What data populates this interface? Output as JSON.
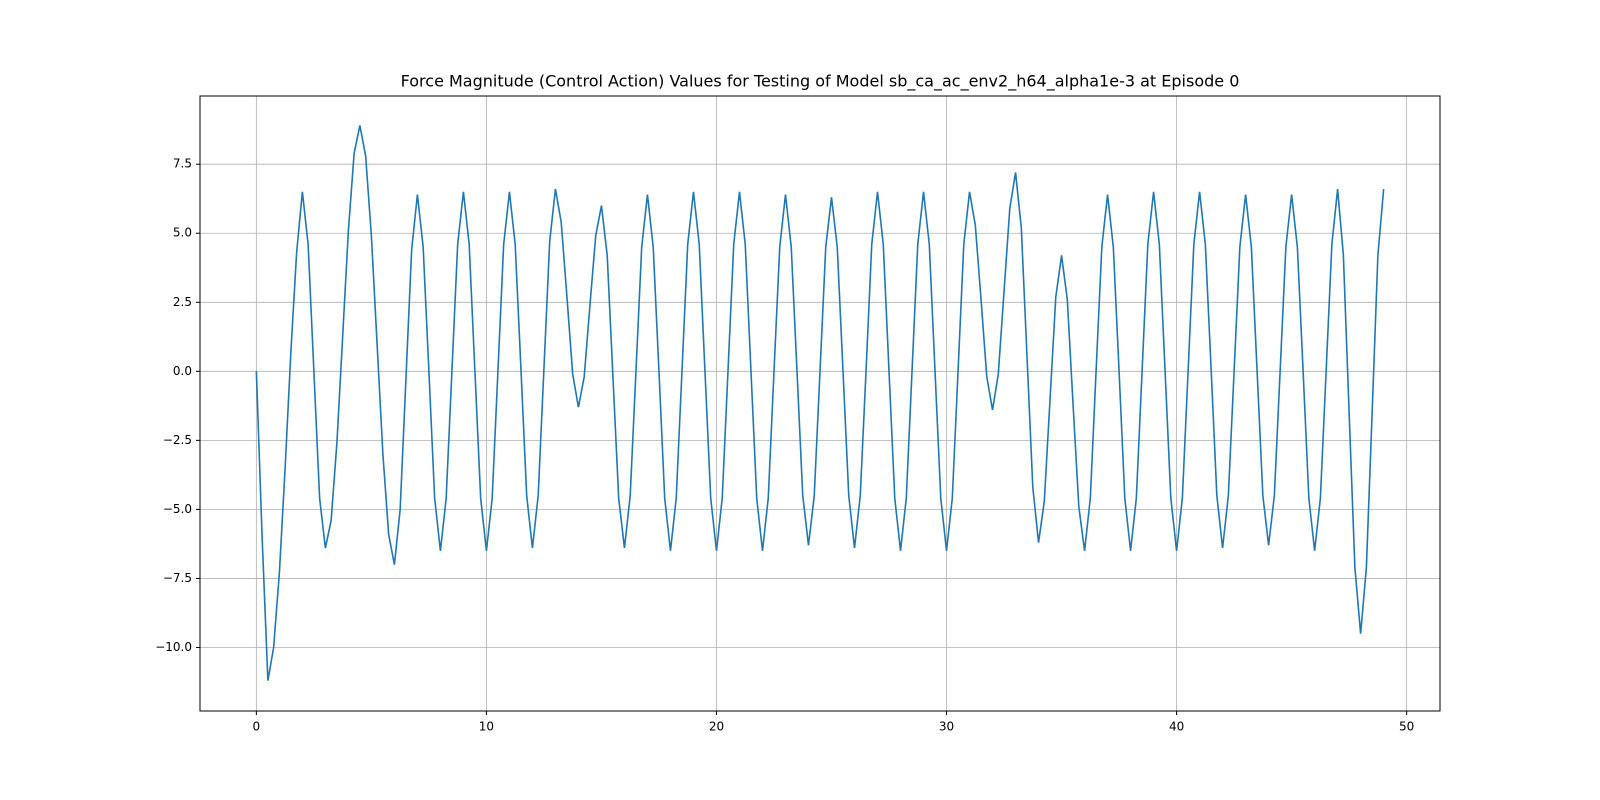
{
  "chart_data": {
    "type": "line",
    "title": "Force Magnitude (Control Action) Values for Testing of Model sb_ca_ac_env2_h64_alpha1e-3 at Episode 0",
    "x": [
      0,
      0.25,
      0.5,
      0.75,
      1,
      1.25,
      1.5,
      1.75,
      2,
      2.25,
      2.5,
      2.75,
      3,
      3.25,
      3.5,
      3.75,
      4,
      4.25,
      4.5,
      4.75,
      5,
      5.25,
      5.5,
      5.75,
      6,
      6.25,
      6.5,
      6.75,
      7,
      7.25,
      7.5,
      7.75,
      8,
      8.25,
      8.5,
      8.75,
      9,
      9.25,
      9.5,
      9.75,
      10,
      10.25,
      10.5,
      10.75,
      11,
      11.25,
      11.5,
      11.75,
      12,
      12.25,
      12.5,
      12.75,
      13,
      13.25,
      13.5,
      13.75,
      14,
      14.25,
      14.5,
      14.75,
      15,
      15.25,
      15.5,
      15.75,
      16,
      16.25,
      16.5,
      16.75,
      17,
      17.25,
      17.5,
      17.75,
      18,
      18.25,
      18.5,
      18.75,
      19,
      19.25,
      19.5,
      19.75,
      20,
      20.25,
      20.5,
      20.75,
      21,
      21.25,
      21.5,
      21.75,
      22,
      22.25,
      22.5,
      22.75,
      23,
      23.25,
      23.5,
      23.75,
      24,
      24.25,
      24.5,
      24.75,
      25,
      25.25,
      25.5,
      25.75,
      26,
      26.25,
      26.5,
      26.75,
      27,
      27.25,
      27.5,
      27.75,
      28,
      28.25,
      28.5,
      28.75,
      29,
      29.25,
      29.5,
      29.75,
      30,
      30.25,
      30.5,
      30.75,
      31,
      31.25,
      31.5,
      31.75,
      32,
      32.25,
      32.5,
      32.75,
      33,
      33.25,
      33.5,
      33.75,
      34,
      34.25,
      34.5,
      34.75,
      35,
      35.25,
      35.5,
      35.75,
      36,
      36.25,
      36.5,
      36.75,
      37,
      37.25,
      37.5,
      37.75,
      38,
      38.25,
      38.5,
      38.75,
      39,
      39.25,
      39.5,
      39.75,
      40,
      40.25,
      40.5,
      40.75,
      41,
      41.25,
      41.5,
      41.75,
      42,
      42.25,
      42.5,
      42.75,
      43,
      43.25,
      43.5,
      43.75,
      44,
      44.25,
      44.5,
      44.75,
      45,
      45.25,
      45.5,
      45.75,
      46,
      46.25,
      46.5,
      46.75,
      47,
      47.25,
      47.5,
      47.75,
      48,
      48.25,
      48.5,
      48.75,
      49
    ],
    "series": [
      {
        "color": "#1f77b4",
        "values": [
          0,
          -6.0,
          -11.2,
          -10.0,
          -7.3,
          -3.5,
          0.7,
          4.3,
          6.5,
          4.6,
          0.0,
          -4.6,
          -6.4,
          -5.4,
          -2.6,
          1.25,
          5.1,
          7.9,
          8.9,
          7.8,
          4.9,
          0.95,
          -3.0,
          -5.9,
          -7.0,
          -5.0,
          -0.3,
          4.4,
          6.4,
          4.5,
          0.0,
          -4.6,
          -6.5,
          -4.6,
          0.0,
          4.6,
          6.5,
          4.6,
          0.0,
          -4.6,
          -6.5,
          -4.6,
          0.0,
          4.6,
          6.5,
          4.6,
          0.1,
          -4.5,
          -6.4,
          -4.5,
          0.1,
          4.7,
          6.6,
          5.4,
          2.7,
          -0.1,
          -1.3,
          -0.2,
          2.4,
          4.9,
          6.0,
          4.2,
          -0.2,
          -4.6,
          -6.4,
          -4.5,
          0.0,
          4.5,
          6.4,
          4.5,
          0.0,
          -4.6,
          -6.5,
          -4.6,
          0.0,
          4.6,
          6.5,
          4.6,
          0.0,
          -4.6,
          -6.5,
          -4.6,
          0.0,
          4.6,
          6.5,
          4.6,
          0.0,
          -4.6,
          -6.5,
          -4.6,
          0.0,
          4.5,
          6.4,
          4.5,
          0.0,
          -4.5,
          -6.3,
          -4.5,
          0.0,
          4.5,
          6.3,
          4.5,
          0.0,
          -4.5,
          -6.4,
          -4.5,
          0.0,
          4.6,
          6.5,
          4.6,
          0.0,
          -4.6,
          -6.5,
          -4.6,
          0.0,
          4.6,
          6.5,
          4.6,
          0.0,
          -4.6,
          -6.5,
          -4.6,
          0.0,
          4.6,
          6.5,
          5.3,
          2.6,
          -0.2,
          -1.4,
          -0.1,
          2.9,
          5.9,
          7.2,
          5.2,
          0.5,
          -4.2,
          -6.2,
          -4.7,
          -1.0,
          2.7,
          4.2,
          2.6,
          -1.2,
          -4.9,
          -6.5,
          -4.6,
          0.0,
          4.5,
          6.4,
          4.5,
          0.0,
          -4.6,
          -6.5,
          -4.6,
          0.0,
          4.6,
          6.5,
          4.6,
          0.0,
          -4.6,
          -6.5,
          -4.6,
          0.0,
          4.6,
          6.5,
          4.6,
          0.1,
          -4.5,
          -6.4,
          -4.5,
          0.0,
          4.5,
          6.4,
          4.5,
          0.0,
          -4.5,
          -6.3,
          -4.5,
          0.0,
          4.5,
          6.4,
          4.5,
          0.0,
          -4.6,
          -6.5,
          -4.6,
          0.0,
          4.6,
          6.6,
          4.2,
          -1.5,
          -7.1,
          -9.5,
          -7.1,
          -1.5,
          4.2,
          6.6
        ]
      }
    ],
    "xlim": [
      -2.45,
      51.45
    ],
    "ylim": [
      -12.3,
      9.97
    ],
    "xticks": [
      0,
      10,
      20,
      30,
      40,
      50
    ],
    "yticks": [
      {
        "value": -10,
        "label": "−10.0"
      },
      {
        "value": -7.5,
        "label": "−7.5"
      },
      {
        "value": -5,
        "label": "−5.0"
      },
      {
        "value": -2.5,
        "label": "−2.5"
      },
      {
        "value": 0,
        "label": "0.0"
      },
      {
        "value": 2.5,
        "label": "2.5"
      },
      {
        "value": 5,
        "label": "5.0"
      },
      {
        "value": 7.5,
        "label": "7.5"
      }
    ],
    "grid": true
  }
}
